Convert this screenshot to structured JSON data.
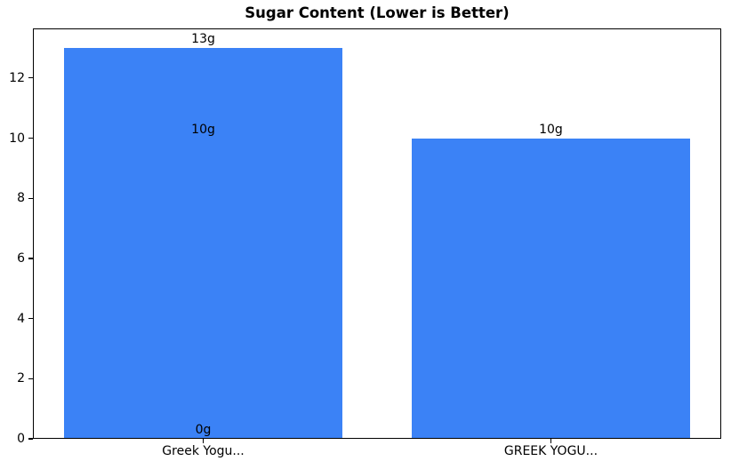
{
  "chart_data": {
    "type": "bar",
    "title": "Sugar Content (Lower is Better)",
    "categories": [
      "Greek Yogu...",
      "GREEK YOGU..."
    ],
    "values": [
      13,
      10
    ],
    "annotations": [
      {
        "category_index": 0,
        "value": 13,
        "label": "13g"
      },
      {
        "category_index": 0,
        "value": 10,
        "label": "10g"
      },
      {
        "category_index": 0,
        "value": 0,
        "label": "0g"
      },
      {
        "category_index": 1,
        "value": 10,
        "label": "10g"
      }
    ],
    "yticks": [
      0,
      2,
      4,
      6,
      8,
      10,
      12
    ],
    "ylim": [
      0,
      13.65
    ],
    "xlim": [
      -0.49,
      1.49
    ],
    "bar_width": 0.8,
    "xlabel": "",
    "ylabel": "",
    "grid": false,
    "legend": false,
    "colors": {
      "bar": "#3b82f6",
      "text": "#000000",
      "axis": "#000000",
      "background": "#ffffff"
    }
  }
}
